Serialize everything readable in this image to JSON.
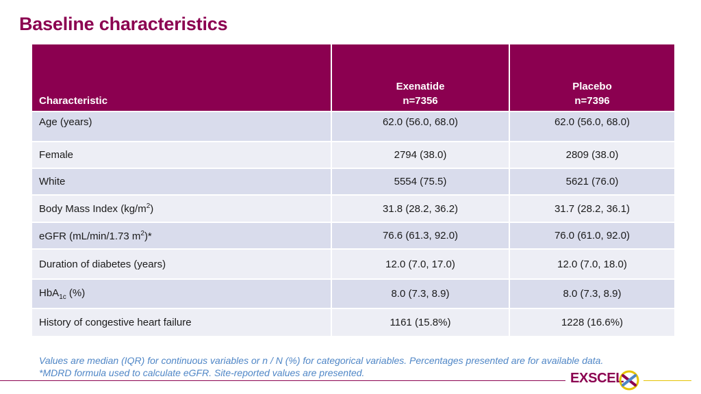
{
  "title": "Baseline characteristics",
  "table": {
    "header": {
      "characteristic": "Characteristic",
      "exenatide": {
        "name": "Exenatide",
        "n": "n=7356"
      },
      "placebo": {
        "name": "Placebo",
        "n": "n=7396"
      }
    },
    "rows": [
      {
        "label": "Age (years)",
        "exenatide": "62.0 (56.0, 68.0)",
        "placebo": "62.0 (56.0, 68.0)"
      },
      {
        "label": "Female",
        "exenatide": "2794 (38.0)",
        "placebo": "2809 (38.0)"
      },
      {
        "label": "White",
        "exenatide": "5554 (75.5)",
        "placebo": "5621 (76.0)"
      },
      {
        "label_pre": "Body Mass Index (kg/m",
        "label_sup": "2",
        "label_post": ")",
        "exenatide": "31.8 (28.2, 36.2)",
        "placebo": "31.7 (28.2, 36.1)"
      },
      {
        "label_pre": "eGFR (mL/min/1.73 m",
        "label_sup": "2",
        "label_post": ")*",
        "exenatide": "76.6 (61.3, 92.0)",
        "placebo": "76.0 (61.0, 92.0)"
      },
      {
        "label": "Duration of diabetes (years)",
        "exenatide": "12.0 (7.0, 17.0)",
        "placebo": "12.0 (7.0, 18.0)"
      },
      {
        "label_pre": "HbA",
        "label_sub": "1c",
        "label_post": " (%)",
        "exenatide": "8.0 (7.3, 8.9)",
        "placebo": "8.0 (7.3, 8.9)"
      },
      {
        "label": "History of congestive heart failure",
        "exenatide": "1161 (15.8%)",
        "placebo": "1228 (16.6%)"
      }
    ]
  },
  "footnote": {
    "line1": "Values are median (IQR) for continuous variables or n / N (%) for categorical variables. Percentages presented are for available data.",
    "line2": "*MDRD formula used to calculate eGFR. Site-reported values are presented."
  },
  "logo": {
    "text": "EXSCEL",
    "icon": "exscel-knot-icon"
  },
  "colors": {
    "brand": "#8b0050",
    "row_odd": "#d9dcec",
    "row_even": "#edeef5",
    "footnote": "#4f86c6",
    "accent": "#e5c300"
  }
}
